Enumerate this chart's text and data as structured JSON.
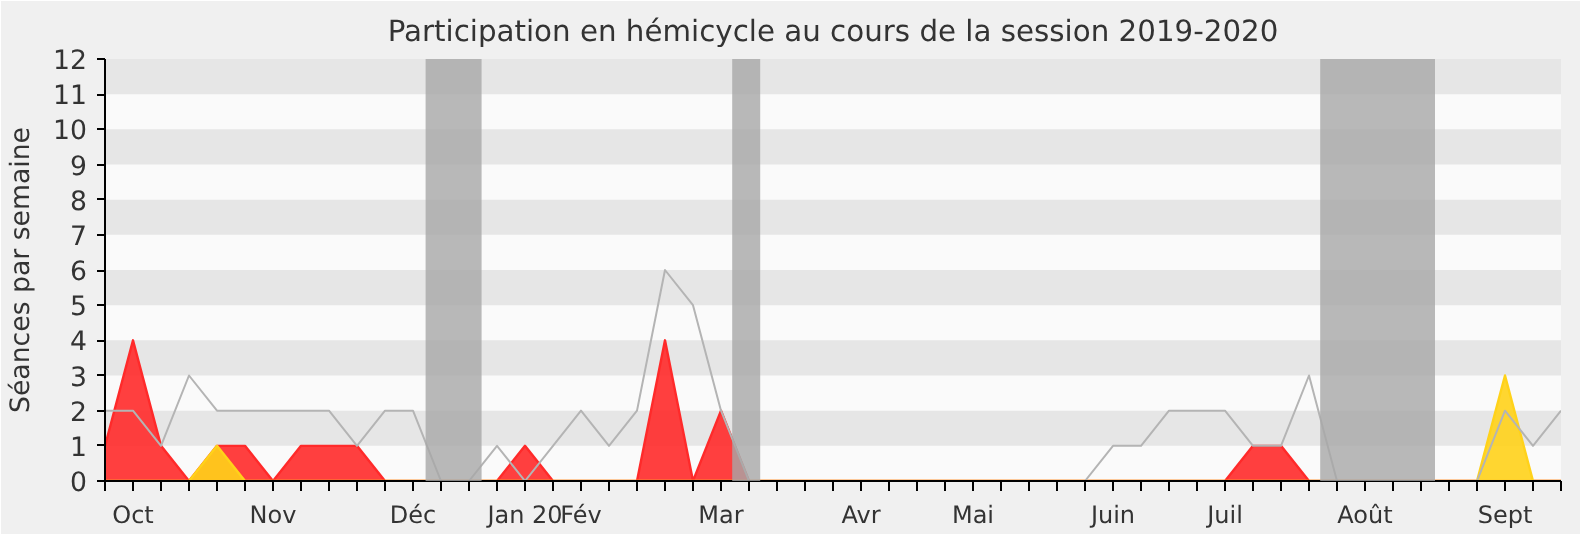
{
  "chart_data": {
    "type": "area",
    "title": "Participation en hémicycle au cours de la session 2019-2020",
    "ylabel": "Séances par semaine",
    "categories": [
      null,
      "Oct",
      null,
      null,
      null,
      null,
      "Nov",
      null,
      null,
      null,
      null,
      "Déc",
      null,
      null,
      null,
      "Jan 20",
      null,
      "Fév",
      null,
      null,
      null,
      null,
      "Mar",
      null,
      null,
      null,
      null,
      "Avr",
      null,
      null,
      null,
      "Mai",
      null,
      null,
      null,
      null,
      "Juin",
      null,
      null,
      null,
      "Juil",
      null,
      null,
      null,
      null,
      "Août",
      null,
      null,
      null,
      null,
      "Sept",
      null,
      null
    ],
    "series": [
      {
        "type": "line",
        "color": "#b4b4b4",
        "values": [
          2,
          2,
          1,
          3,
          2,
          2,
          2,
          2,
          2,
          1,
          2,
          2,
          0,
          0,
          1,
          0,
          1,
          2,
          1,
          2,
          6,
          5,
          2,
          0,
          0,
          0,
          0,
          0,
          0,
          0,
          0,
          0,
          0,
          0,
          0,
          0,
          1,
          1,
          2,
          2,
          2,
          1,
          1,
          3,
          0,
          0,
          0,
          0,
          0,
          0,
          2,
          1,
          2
        ]
      },
      {
        "color": "#ff2a2a",
        "values": [
          1,
          4,
          1,
          0,
          1,
          1,
          0,
          1,
          1,
          1,
          0,
          0,
          0,
          0,
          0,
          1,
          0,
          0,
          0,
          0,
          4,
          0,
          2,
          0,
          0,
          0,
          0,
          0,
          0,
          0,
          0,
          0,
          0,
          0,
          0,
          0,
          0,
          0,
          0,
          0,
          0,
          1,
          1,
          0,
          0,
          0,
          0,
          0,
          0,
          0,
          0,
          0,
          0
        ]
      },
      {
        "color": "#ffd21a",
        "values": [
          0,
          0,
          0,
          0,
          1,
          0,
          0,
          0,
          0,
          0,
          0,
          0,
          0,
          0,
          0,
          0,
          0,
          0,
          0,
          0,
          0,
          0,
          0,
          0,
          0,
          0,
          0,
          0,
          0,
          0,
          0,
          0,
          0,
          0,
          0,
          0,
          0,
          0,
          0,
          0,
          0,
          0,
          0,
          0,
          0,
          0,
          0,
          0,
          0,
          0,
          3,
          0,
          0
        ]
      }
    ],
    "ylim": [
      0,
      12
    ],
    "yticks": [
      0,
      1,
      2,
      3,
      4,
      5,
      6,
      7,
      8,
      9,
      10,
      11,
      12
    ]
  }
}
